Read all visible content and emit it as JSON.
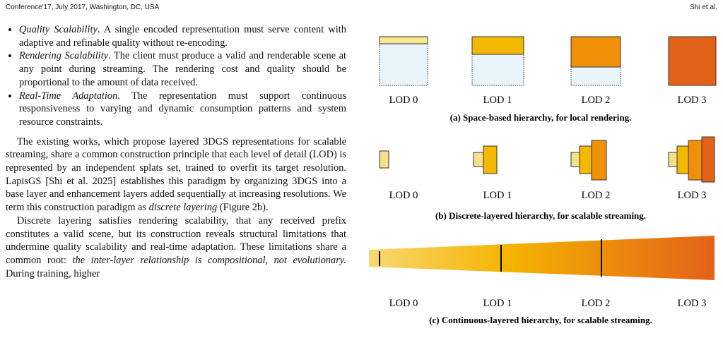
{
  "header": {
    "venue": "Conference'17, July 2017, Washington, DC, USA",
    "authors": "Shi et al."
  },
  "bullets": [
    {
      "term": "Quality Scalability",
      "text": ". A single encoded representation must serve content with adaptive and refinable quality without re-encoding."
    },
    {
      "term": "Rendering Scalability",
      "text": ". The client must produce a valid and renderable scene at any point during streaming. The rendering cost and quality should be proportional to the amount of data received."
    },
    {
      "term": "Real-Time Adaptation",
      "text": ". The representation must support continuous responsiveness to varying and dynamic consumption patterns and system resource constraints."
    }
  ],
  "paragraphs": [
    [
      {
        "text": "The existing works, which propose layered 3DGS representations for scalable streaming, share a common construction principle that each level of detail (LOD) is represented by an independent splats set, trained to overfit its target resolution. LapisGS [Shi et al. 2025] establishes this paradigm by organizing 3DGS into a base layer and enhancement layers added sequentially at increasing resolutions. We term this construction paradigm as "
      },
      {
        "em": "discrete layering"
      },
      {
        "text": " (Figure 2b)."
      }
    ],
    [
      {
        "text": "Discrete layering satisfies rendering scalability, that any received prefix constitutes a valid scene, but its construction reveals structural limitations that undermine quality scalability and real-time adaptation. These limitations share a common root: "
      },
      {
        "em": "the inter-layer relationship is compositional, not evolutionary."
      },
      {
        "text": " During training, higher"
      }
    ]
  ],
  "figure": {
    "panels": [
      {
        "lods": [
          "LOD 0",
          "LOD 1",
          "LOD 2",
          "LOD 3"
        ],
        "caption": "(a) Space-based hierarchy, for local rendering."
      },
      {
        "lods": [
          "LOD 0",
          "LOD 1",
          "LOD 2",
          "LOD 3"
        ],
        "caption": "(b) Discrete-layered hierarchy, for scalable streaming."
      },
      {
        "lods": [
          "LOD 0",
          "LOD 1",
          "LOD 2",
          "LOD 3"
        ],
        "caption": "(c) Continuous-layered hierarchy, for scalable streaming."
      }
    ]
  }
}
